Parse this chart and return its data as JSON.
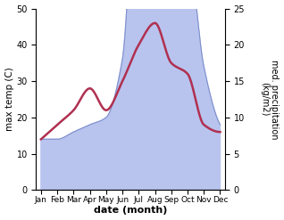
{
  "months": [
    "Jan",
    "Feb",
    "Mar",
    "Apr",
    "May",
    "Jun",
    "Jul",
    "Aug",
    "Sep",
    "Oct",
    "Nov",
    "Dec"
  ],
  "temp": [
    14,
    18,
    22,
    28,
    22,
    30,
    40,
    46,
    35,
    32,
    18,
    16
  ],
  "precip": [
    7,
    7,
    8,
    9,
    10,
    18,
    48,
    46,
    34,
    33,
    17,
    9
  ],
  "temp_color": "#b03050",
  "precip_fill_color": "#b8c4ee",
  "precip_edge_color": "#8090cc",
  "xlabel": "date (month)",
  "ylabel_left": "max temp (C)",
  "ylabel_right": "med. precipitation\n(kg/m2)",
  "ylim_left": [
    0,
    50
  ],
  "ylim_right": [
    0,
    25
  ],
  "bg_color": "#ffffff"
}
